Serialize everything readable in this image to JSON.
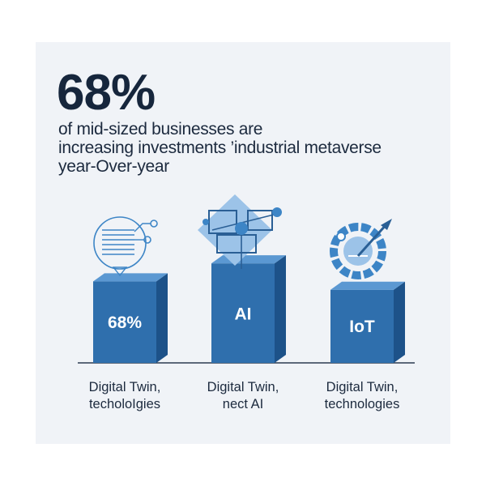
{
  "headline": {
    "stat": "68%",
    "text_lines": [
      "of mid-sized businesses are",
      "increasing investments ’industrial metaverse",
      "year-Over-year"
    ]
  },
  "chart_data": {
    "type": "bar",
    "categories": [
      "Digital Twin,\ntecholoIgies",
      "Digital Twin,\nnect AI",
      "Digital Twin,\ntechnologies"
    ],
    "category_label_lines": [
      [
        "Digital Twin,",
        "techoloIgies"
      ],
      [
        "Digital Twin,",
        "nect AI"
      ],
      [
        "Digital Twin,",
        "technologies"
      ]
    ],
    "bar_labels": [
      "68%",
      "AI",
      "IoT"
    ],
    "values": [
      68,
      83,
      61
    ],
    "icons": [
      "document-network-icon",
      "network-diagram-icon",
      "gauge-dial-icon"
    ],
    "ylim": [
      0,
      100
    ],
    "axis": false,
    "grid": false,
    "colors": {
      "bar_front": "#2f6fad",
      "bar_side": "#1d5289",
      "bar_top": "#5b98d2",
      "bar_text": "#ffffff",
      "baseline": "#2a3a50",
      "icon_primary": "#3d85c6",
      "icon_light": "#9cc3e8"
    }
  }
}
